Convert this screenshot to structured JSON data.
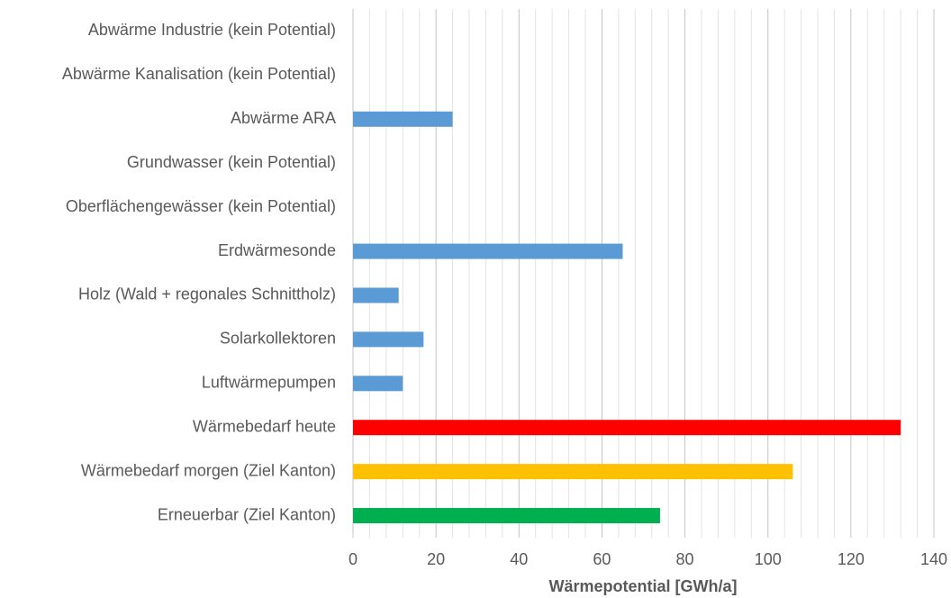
{
  "chart_data": {
    "type": "hbar",
    "xlabel": "Wärmepotential [GWh/a]",
    "categories": [
      "Abwärme Industrie (kein Potential)",
      "Abwärme Kanalisation (kein Potential)",
      "Abwärme ARA",
      "Grundwasser (kein Potential)",
      "Oberflächengewässer (kein Potential)",
      "Erdwärmesonde",
      "Holz (Wald + regonales Schnittholz)",
      "Solarkollektoren",
      "Luftwärmepumpen",
      "Wärmebedarf heute",
      "Wärmebedarf morgen (Ziel Kanton)",
      "Erneuerbar (Ziel Kanton)"
    ],
    "values": [
      0,
      0,
      24,
      0,
      0,
      65,
      11,
      17,
      12,
      132,
      106,
      74
    ],
    "colors": [
      "#5b9bd5",
      "#5b9bd5",
      "#5b9bd5",
      "#5b9bd5",
      "#5b9bd5",
      "#5b9bd5",
      "#5b9bd5",
      "#5b9bd5",
      "#5b9bd5",
      "#ff0000",
      "#ffc000",
      "#00b050"
    ],
    "xlim": [
      0,
      140
    ],
    "xticks": [
      0,
      20,
      40,
      60,
      80,
      100,
      120,
      140
    ],
    "xminorticks": [
      4,
      8,
      12,
      16,
      24,
      28,
      32,
      36,
      44,
      48,
      52,
      56,
      64,
      68,
      72,
      76,
      84,
      88,
      92,
      96,
      104,
      108,
      112,
      116,
      124,
      128,
      132,
      136
    ],
    "grid": true
  }
}
